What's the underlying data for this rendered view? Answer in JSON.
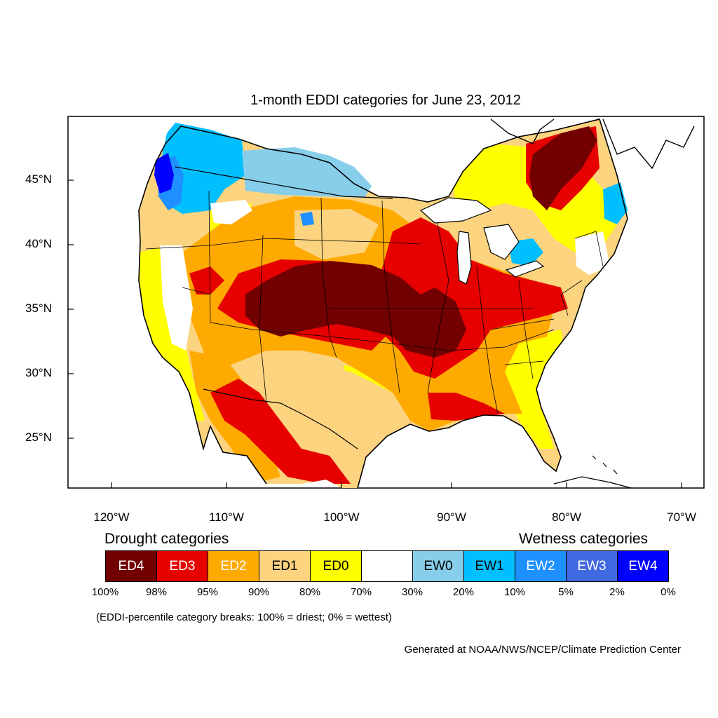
{
  "title": "1-month EDDI categories for June 23, 2012",
  "lat_labels": [
    "45°N",
    "40°N",
    "35°N",
    "30°N",
    "25°N"
  ],
  "lon_labels": [
    "120°W",
    "110°W",
    "100°W",
    "90°W",
    "80°W",
    "70°W"
  ],
  "legend": {
    "drought_title": "Drought categories",
    "wetness_title": "Wetness categories",
    "categories": [
      {
        "label": "ED4",
        "color": "#730000",
        "text_color": "#ffffff"
      },
      {
        "label": "ED3",
        "color": "#e60000",
        "text_color": "#ffffff"
      },
      {
        "label": "ED2",
        "color": "#ffaa00",
        "text_color": "#ffffff"
      },
      {
        "label": "ED1",
        "color": "#fcd37f",
        "text_color": "#000000"
      },
      {
        "label": "ED0",
        "color": "#ffff00",
        "text_color": "#000000"
      },
      {
        "label": "",
        "color": "#ffffff",
        "text_color": "#000000"
      },
      {
        "label": "EW0",
        "color": "#87ceeb",
        "text_color": "#000000"
      },
      {
        "label": "EW1",
        "color": "#00bfff",
        "text_color": "#000000"
      },
      {
        "label": "EW2",
        "color": "#1e90ff",
        "text_color": "#ffffff"
      },
      {
        "label": "EW3",
        "color": "#4169e1",
        "text_color": "#ffffff"
      },
      {
        "label": "EW4",
        "color": "#0000ff",
        "text_color": "#ffffff"
      }
    ],
    "percentiles": [
      "100%",
      "98%",
      "95%",
      "90%",
      "80%",
      "70%",
      "30%",
      "20%",
      "10%",
      "5%",
      "2%",
      "0%"
    ],
    "note": "(EDDI-percentile category breaks: 100% = driest; 0% = wettest)"
  },
  "credit": "Generated at NOAA/NWS/NCEP/Climate Prediction Center"
}
